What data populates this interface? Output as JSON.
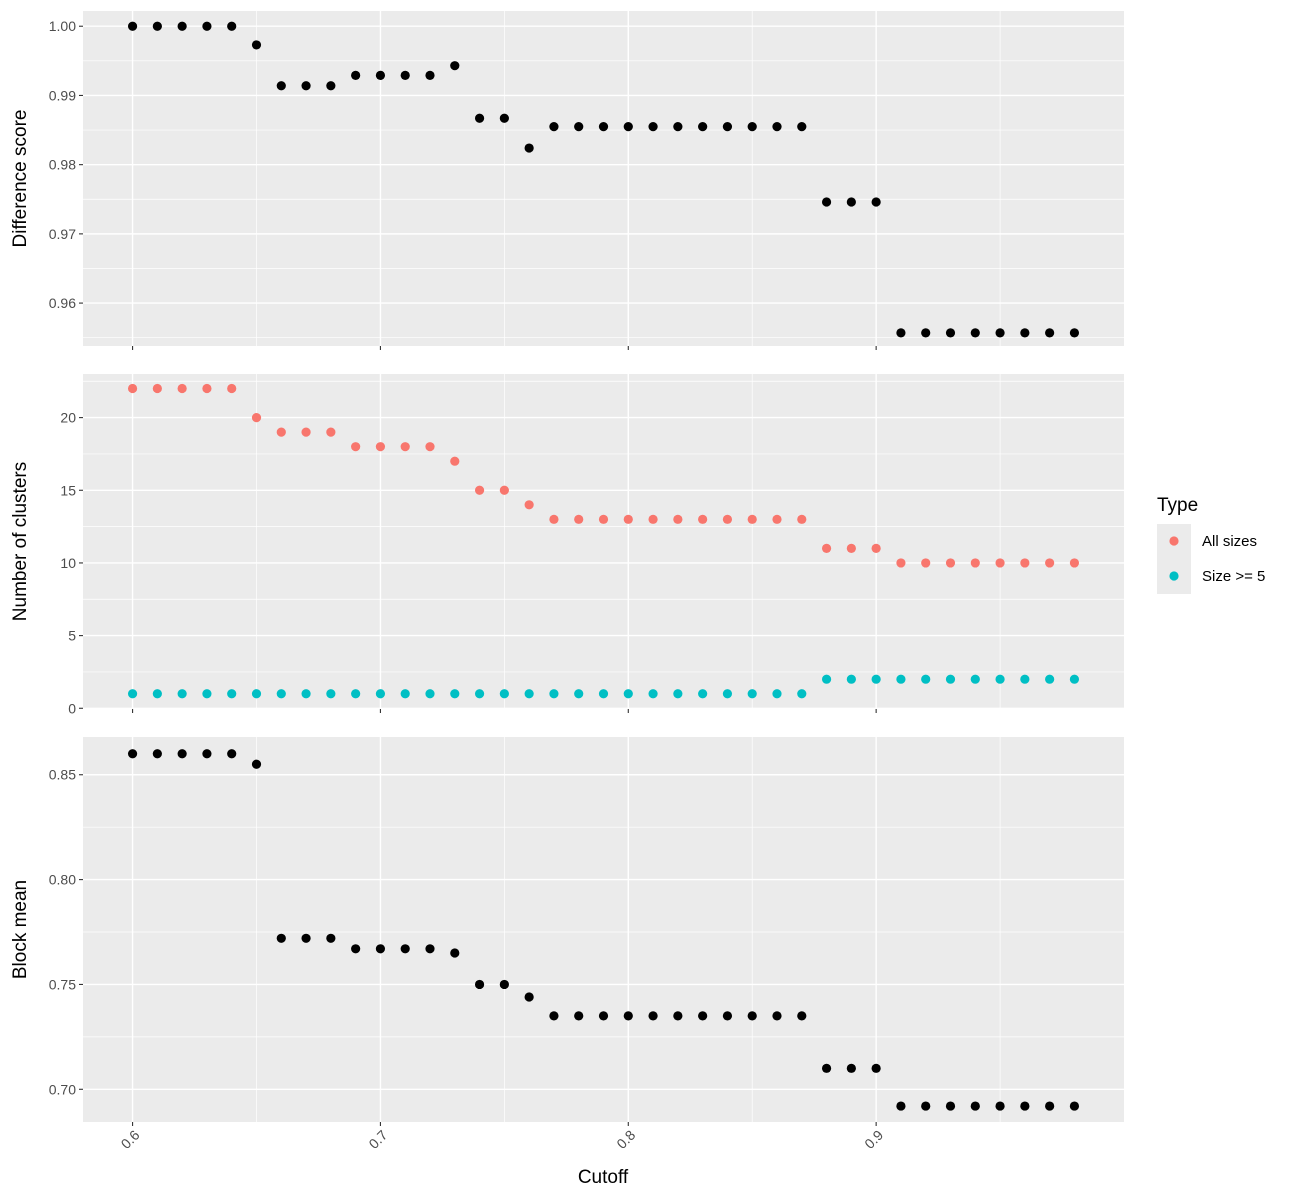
{
  "chart_data": {
    "type": "scatter",
    "x": [
      0.6,
      0.61,
      0.62,
      0.63,
      0.64,
      0.65,
      0.66,
      0.67,
      0.68,
      0.69,
      0.7,
      0.71,
      0.72,
      0.73,
      0.74,
      0.75,
      0.76,
      0.77,
      0.78,
      0.79,
      0.8,
      0.81,
      0.82,
      0.83,
      0.84,
      0.85,
      0.86,
      0.87,
      0.88,
      0.89,
      0.9,
      0.91,
      0.92,
      0.93,
      0.94,
      0.95,
      0.96,
      0.97,
      0.98
    ],
    "xlabel": "Cutoff",
    "xlim": [
      0.58,
      1.0
    ],
    "xticks": [
      0.6,
      0.7,
      0.8,
      0.9
    ],
    "xtick_labels": [
      "0.6",
      "0.7",
      "0.8",
      "0.9"
    ],
    "xtick_rotation": -45,
    "grid": true,
    "legend": {
      "title": "Type",
      "placement": "right",
      "entries": [
        {
          "label": "All sizes",
          "color": "#F8766D"
        },
        {
          "label": "Size >= 5",
          "color": "#00BFC4"
        }
      ]
    },
    "panels": [
      {
        "ylabel": "Difference score",
        "ylim": [
          0.9538,
          1.0022
        ],
        "yticks": [
          0.96,
          0.97,
          0.98,
          0.99,
          1.0
        ],
        "ytick_labels": [
          "0.96",
          "0.97",
          "0.98",
          "0.99",
          "1.00"
        ],
        "series": [
          {
            "color": "#000000",
            "values": [
              1.0,
              1.0,
              1.0,
              1.0,
              1.0,
              0.9973,
              0.9914,
              0.9914,
              0.9914,
              0.9929,
              0.9929,
              0.9929,
              0.9929,
              0.9943,
              0.9867,
              0.9867,
              0.9824,
              0.9855,
              0.9855,
              0.9855,
              0.9855,
              0.9855,
              0.9855,
              0.9855,
              0.9855,
              0.9855,
              0.9855,
              0.9855,
              0.9746,
              0.9746,
              0.9746,
              0.9557,
              0.9557,
              0.9557,
              0.9557,
              0.9557,
              0.9557,
              0.9557,
              0.9557
            ]
          }
        ]
      },
      {
        "ylabel": "Number of clusters",
        "ylim": [
          -0.05,
          23.0
        ],
        "yticks": [
          0,
          5,
          10,
          15,
          20
        ],
        "ytick_labels": [
          "0",
          "5",
          "10",
          "15",
          "20"
        ],
        "series": [
          {
            "name": "All sizes",
            "color": "#F8766D",
            "values": [
              22,
              22,
              22,
              22,
              22,
              20,
              19,
              19,
              19,
              18,
              18,
              18,
              18,
              17,
              15,
              15,
              14,
              13,
              13,
              13,
              13,
              13,
              13,
              13,
              13,
              13,
              13,
              13,
              11,
              11,
              11,
              10,
              10,
              10,
              10,
              10,
              10,
              10,
              10
            ]
          },
          {
            "name": "Size >= 5",
            "color": "#00BFC4",
            "values": [
              1,
              1,
              1,
              1,
              1,
              1,
              1,
              1,
              1,
              1,
              1,
              1,
              1,
              1,
              1,
              1,
              1,
              1,
              1,
              1,
              1,
              1,
              1,
              1,
              1,
              1,
              1,
              1,
              2,
              2,
              2,
              2,
              2,
              2,
              2,
              2,
              2,
              2,
              2
            ]
          }
        ]
      },
      {
        "ylabel": "Block mean",
        "ylim": [
          0.6844,
          0.868
        ],
        "yticks": [
          0.7,
          0.75,
          0.8,
          0.85
        ],
        "ytick_labels": [
          "0.70",
          "0.75",
          "0.80",
          "0.85"
        ],
        "series": [
          {
            "color": "#000000",
            "values": [
              0.86,
              0.86,
              0.86,
              0.86,
              0.86,
              0.855,
              0.772,
              0.772,
              0.772,
              0.767,
              0.767,
              0.767,
              0.767,
              0.765,
              0.75,
              0.75,
              0.744,
              0.735,
              0.735,
              0.735,
              0.735,
              0.735,
              0.735,
              0.735,
              0.735,
              0.735,
              0.735,
              0.735,
              0.71,
              0.71,
              0.71,
              0.692,
              0.692,
              0.692,
              0.692,
              0.692,
              0.692,
              0.692,
              0.692
            ]
          }
        ]
      }
    ]
  }
}
